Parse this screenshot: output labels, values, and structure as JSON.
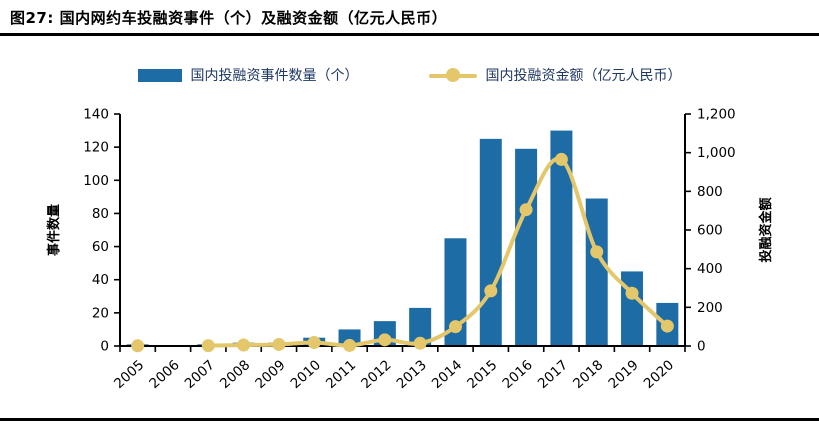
{
  "figure": {
    "title": "图27: 国内网约车投融资事件（个）及融资金额（亿元人民币）"
  },
  "chart_data": {
    "type": "combo-bar-line",
    "categories": [
      "2005",
      "2006",
      "2007",
      "2008",
      "2009",
      "2010",
      "2011",
      "2012",
      "2013",
      "2014",
      "2015",
      "2016",
      "2017",
      "2018",
      "2019",
      "2020"
    ],
    "series": [
      {
        "name": "国内投融资事件数量（个）",
        "type": "bar",
        "axis": "left",
        "values": [
          1,
          0,
          1,
          2,
          2,
          5,
          10,
          15,
          23,
          65,
          125,
          119,
          130,
          89,
          45,
          26
        ]
      },
      {
        "name": "国内投融资金额（亿元人民币）",
        "type": "line",
        "axis": "right",
        "values": [
          1,
          null,
          2,
          5,
          8,
          18,
          3,
          32,
          14,
          100,
          285,
          705,
          965,
          487,
          273,
          103
        ]
      }
    ],
    "left_axis": {
      "title": "事件数量",
      "min": 0,
      "max": 140,
      "step": 20
    },
    "right_axis": {
      "title": "投融资金额",
      "min": 0,
      "max": 1200,
      "step": 200,
      "tick_labels": [
        "0",
        "200",
        "400",
        "600",
        "800",
        "1,000",
        "1,200"
      ]
    },
    "legend_position": "top",
    "grid": false
  },
  "colors": {
    "bar": "#1E6CA6",
    "line": "#E3C76A",
    "legend_text": "#1F3864",
    "axis": "#000000",
    "rule": "#000000"
  }
}
